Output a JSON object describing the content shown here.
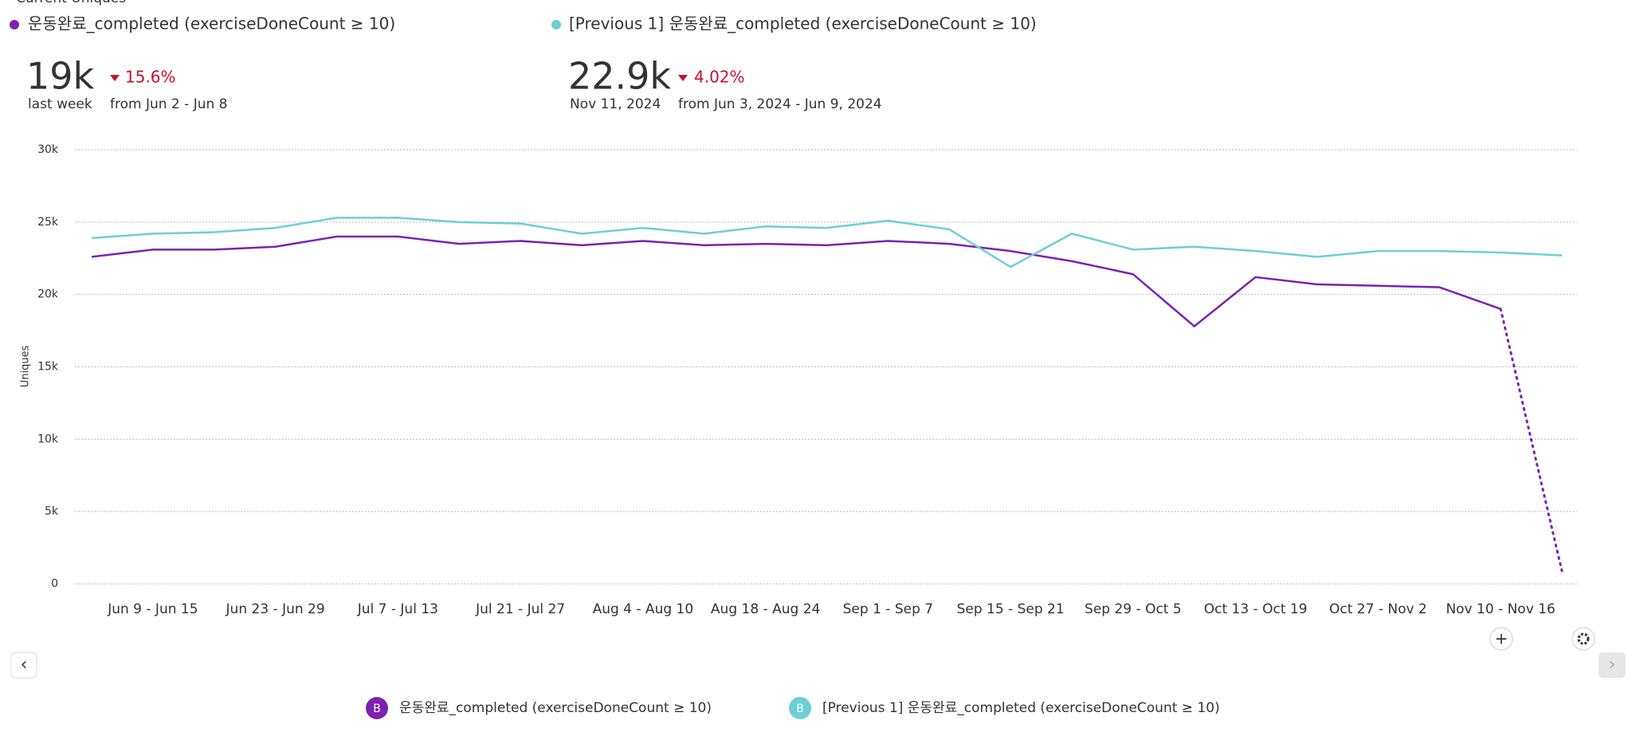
{
  "header": {
    "title": "Current Uniques"
  },
  "kpis": [
    {
      "value": "19k",
      "change": "15.6%",
      "caption": "last week",
      "comparison": "from Jun 2 - Jun 8"
    },
    {
      "value": "22.9k",
      "change": "4.02%",
      "caption": "Nov 11, 2024",
      "comparison": "from Jun 3, 2024 - Jun 9, 2024"
    }
  ],
  "controls": {
    "add": "+",
    "prev": "‹",
    "next": "›",
    "badge": "B"
  },
  "chart_data": {
    "type": "line",
    "y_label": "Uniques",
    "grid": true,
    "categories": [
      null,
      "Jun 9 - Jun 15",
      null,
      "Jun 23 - Jun 29",
      null,
      "Jul 7 - Jul 13",
      null,
      "Jul 21 - Jul 27",
      null,
      "Aug 4 - Aug 10",
      null,
      "Aug 18 - Aug 24",
      null,
      "Sep 1 - Sep 7",
      null,
      "Sep 15 - Sep 21",
      null,
      "Sep 29 - Oct 5",
      null,
      "Oct 13 - Oct 19",
      null,
      "Oct 27 - Nov 2",
      null,
      "Nov 10 - Nov 16",
      null
    ],
    "ylim": [
      0,
      30000
    ],
    "yticks": [
      0,
      {
        "value": 5000,
        "label": "5k"
      },
      {
        "value": 10000,
        "label": "10k"
      },
      {
        "value": 15000,
        "label": "15k"
      },
      {
        "value": 20000,
        "label": "20k"
      },
      {
        "value": 25000,
        "label": "25k"
      },
      {
        "value": 30000,
        "label": "30k"
      }
    ],
    "series": [
      {
        "name": "운동완료_completed (exerciseDoneCount ≥ 10)",
        "color": "#7b22b0",
        "dotted_last_segment": true,
        "values": [
          22600,
          23100,
          23100,
          23300,
          24000,
          24000,
          23500,
          23700,
          23400,
          23700,
          23400,
          23500,
          23400,
          23700,
          23500,
          23000,
          22300,
          21400,
          17800,
          21200,
          20700,
          20600,
          20500,
          19000,
          900
        ]
      },
      {
        "name": "[Previous 1] 운동완료_completed (exerciseDoneCount ≥ 10)",
        "color": "#6ccfd4",
        "dotted_last_segment": false,
        "values": [
          23900,
          24200,
          24300,
          24600,
          25300,
          25300,
          25000,
          24900,
          24200,
          24600,
          24200,
          24700,
          24600,
          25100,
          24500,
          21900,
          24200,
          23100,
          23300,
          23000,
          22600,
          23000,
          23000,
          22900,
          22700
        ]
      }
    ]
  }
}
